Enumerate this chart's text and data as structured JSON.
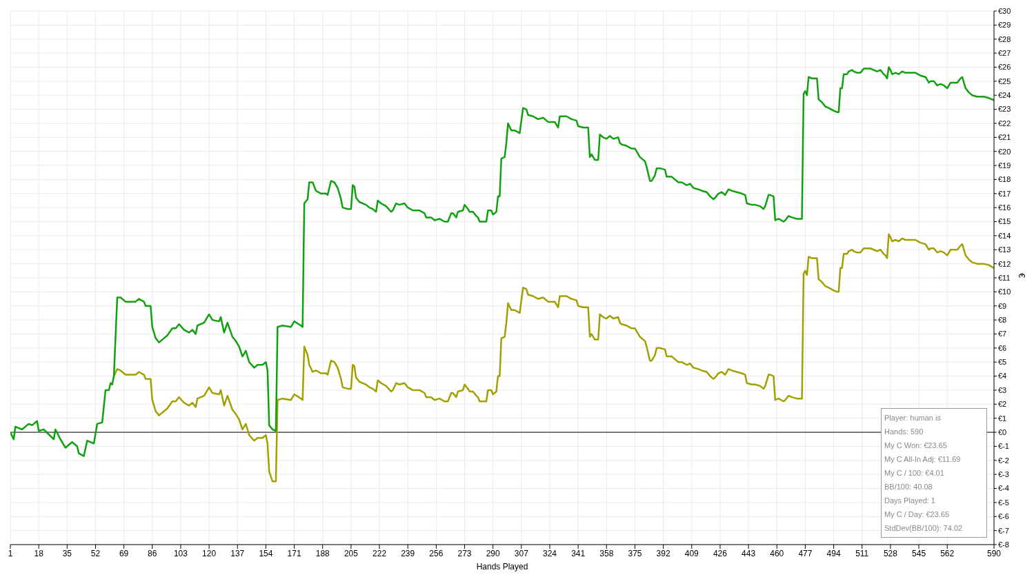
{
  "chart_data": {
    "type": "line",
    "xlabel": "Hands Played",
    "ylabel": "€",
    "x": [
      1,
      3,
      4,
      8,
      12,
      14,
      17,
      18,
      21,
      27,
      28,
      31,
      34,
      38,
      41,
      42,
      45,
      47,
      51,
      53,
      56,
      58,
      60,
      61,
      62,
      63,
      65,
      67,
      70,
      76,
      78,
      81,
      82,
      85,
      86,
      88,
      90,
      93,
      95,
      98,
      100,
      102,
      105,
      108,
      110,
      112,
      113,
      117,
      120,
      122,
      126,
      127,
      129,
      131,
      134,
      136,
      138,
      140,
      142,
      144,
      147,
      149,
      152,
      154,
      155,
      156,
      158,
      160,
      161,
      164,
      169,
      171,
      175,
      176,
      177,
      179,
      180,
      182,
      184,
      187,
      190,
      191,
      193,
      195,
      197,
      199,
      200,
      203,
      205,
      206,
      207,
      208,
      210,
      214,
      216,
      218,
      220,
      221,
      223,
      226,
      229,
      230,
      232,
      234,
      237,
      239,
      242,
      246,
      249,
      250,
      253,
      255,
      258,
      261,
      263,
      265,
      266,
      268,
      269,
      272,
      273,
      275,
      276,
      278,
      280,
      281,
      282,
      286,
      287,
      289,
      290,
      292,
      293,
      294,
      295,
      297,
      298,
      299,
      301,
      303,
      306,
      308,
      310,
      311,
      314,
      317,
      320,
      323,
      327,
      329,
      330,
      334,
      337,
      340,
      341,
      344,
      347,
      348,
      349,
      351,
      353,
      354,
      356,
      358,
      360,
      362,
      365,
      366,
      367,
      370,
      373,
      375,
      376,
      378,
      380,
      381,
      382,
      384,
      385,
      387,
      388,
      390,
      393,
      394,
      397,
      399,
      401,
      403,
      406,
      408,
      410,
      413,
      415,
      418,
      420,
      422,
      423,
      425,
      427,
      429,
      431,
      433,
      436,
      439,
      441,
      442,
      445,
      447,
      450,
      452,
      453,
      455,
      456,
      458,
      459,
      461,
      464,
      465,
      467,
      469,
      472,
      475,
      476,
      477,
      478,
      479,
      481,
      484,
      485,
      487,
      489,
      491,
      494,
      496,
      497,
      498,
      499,
      500,
      502,
      503,
      505,
      506,
      508,
      510,
      512,
      514,
      516,
      518,
      520,
      522,
      524,
      525,
      526,
      527,
      528,
      529,
      531,
      533,
      535,
      537,
      540,
      543,
      546,
      549,
      551,
      552,
      554,
      556,
      558,
      560,
      562,
      564,
      566,
      568,
      570,
      571,
      573,
      575,
      577,
      580,
      584,
      587,
      590
    ],
    "series": [
      {
        "color": "#a0a000",
        "values": [
          null,
          null,
          null,
          null,
          null,
          null,
          null,
          null,
          null,
          null,
          null,
          null,
          null,
          null,
          null,
          null,
          null,
          null,
          null,
          null,
          null,
          null,
          null,
          null,
          null,
          4.0,
          4.5,
          4.4,
          4.1,
          4.1,
          4.3,
          4.1,
          3.8,
          3.8,
          2.3,
          1.5,
          1.2,
          1.5,
          1.7,
          2.2,
          2.2,
          2.5,
          2.1,
          1.9,
          2.1,
          1.8,
          2.4,
          2.6,
          3.2,
          2.8,
          2.7,
          3.0,
          1.9,
          2.6,
          1.6,
          1.3,
          0.9,
          0.2,
          0.6,
          -0.2,
          -0.6,
          -0.4,
          -0.4,
          -0.2,
          -0.8,
          -2.8,
          -3.5,
          -3.5,
          2.3,
          2.4,
          2.3,
          2.7,
          2.4,
          2.3,
          6.1,
          5.5,
          4.8,
          4.3,
          4.4,
          4.2,
          4.2,
          4.1,
          5.1,
          5.0,
          4.6,
          3.8,
          3.2,
          3.1,
          3.1,
          4.8,
          4.7,
          3.9,
          3.6,
          3.4,
          3.2,
          3.1,
          2.9,
          3.7,
          3.5,
          3.3,
          2.9,
          3.0,
          3.5,
          3.4,
          3.5,
          3.2,
          3.0,
          3.0,
          2.8,
          2.5,
          2.5,
          2.3,
          2.4,
          2.2,
          2.2,
          2.8,
          2.8,
          2.5,
          2.9,
          3.0,
          3.4,
          3.1,
          2.9,
          2.9,
          2.6,
          2.5,
          2.2,
          2.2,
          3.0,
          3.0,
          2.7,
          2.9,
          4.0,
          4.0,
          6.7,
          6.8,
          7.8,
          9.2,
          8.7,
          8.7,
          8.5,
          10.3,
          10.2,
          9.8,
          9.7,
          9.5,
          9.6,
          9.3,
          9.3,
          8.9,
          9.7,
          9.7,
          9.5,
          9.4,
          9.0,
          8.9,
          8.9,
          6.8,
          7.0,
          6.6,
          6.6,
          8.4,
          8.2,
          8.1,
          8.3,
          8.1,
          8.2,
          7.8,
          7.7,
          7.6,
          7.4,
          7.4,
          7.2,
          6.8,
          6.6,
          6.5,
          6.1,
          5.1,
          5.1,
          5.5,
          6.0,
          6.0,
          5.9,
          5.4,
          5.4,
          5.2,
          5.0,
          5.0,
          4.8,
          4.9,
          4.6,
          4.5,
          4.4,
          4.3,
          4.0,
          3.8,
          3.9,
          4.2,
          4.3,
          4.1,
          4.5,
          4.4,
          4.3,
          4.2,
          4.1,
          3.5,
          3.4,
          3.4,
          3.3,
          3.1,
          3.3,
          4.1,
          4.1,
          4.0,
          2.3,
          2.4,
          2.2,
          2.3,
          2.6,
          2.5,
          2.4,
          2.4,
          11.3,
          11.5,
          11.2,
          12.5,
          12.4,
          12.4,
          10.9,
          10.7,
          10.4,
          10.3,
          10.1,
          10.0,
          10.0,
          11.7,
          11.7,
          12.7,
          12.7,
          12.9,
          13.0,
          12.9,
          12.8,
          12.8,
          13.1,
          13.1,
          13.1,
          13.0,
          12.9,
          13.0,
          12.7,
          12.6,
          12.4,
          14.1,
          13.9,
          13.6,
          13.7,
          13.6,
          13.8,
          13.7,
          13.7,
          13.7,
          13.5,
          13.4,
          13.0,
          13.1,
          13.1,
          12.8,
          12.9,
          12.8,
          12.6,
          13.0,
          13.0,
          13.0,
          13.3,
          13.4,
          12.6,
          12.3,
          12.1,
          12.0,
          12.0,
          11.9,
          11.69
        ]
      },
      {
        "color": "#10a010",
        "values": [
          0,
          -0.5,
          0.4,
          0.2,
          0.6,
          0.5,
          0.8,
          0.1,
          0.2,
          -0.5,
          0.2,
          -0.5,
          -1.1,
          -0.7,
          -1.0,
          -1.5,
          -1.7,
          -0.6,
          -0.8,
          0.6,
          0.7,
          3.0,
          3.0,
          3.5,
          3.4,
          4.0,
          9.6,
          9.6,
          9.3,
          9.3,
          9.5,
          9.3,
          9.0,
          9.0,
          7.5,
          6.7,
          6.4,
          6.7,
          6.9,
          7.4,
          7.4,
          7.7,
          7.3,
          7.1,
          7.3,
          7.0,
          7.6,
          7.8,
          8.4,
          8.0,
          7.9,
          8.2,
          7.1,
          7.8,
          6.8,
          6.5,
          6.1,
          5.4,
          5.8,
          5.0,
          4.6,
          4.8,
          4.8,
          5.0,
          4.4,
          0.5,
          0.2,
          0.1,
          7.5,
          7.6,
          7.5,
          7.9,
          7.6,
          7.5,
          16.3,
          16.6,
          17.8,
          17.8,
          17.2,
          17.0,
          17.0,
          16.9,
          17.9,
          17.8,
          17.4,
          16.6,
          16.0,
          15.9,
          15.9,
          17.6,
          17.5,
          16.7,
          16.4,
          16.2,
          16.0,
          15.9,
          15.7,
          16.5,
          16.3,
          16.1,
          15.7,
          15.8,
          16.3,
          16.2,
          16.3,
          16.0,
          15.8,
          15.8,
          15.6,
          15.3,
          15.3,
          15.1,
          15.2,
          15.0,
          15.0,
          15.6,
          15.6,
          15.3,
          15.7,
          15.8,
          16.2,
          15.9,
          15.7,
          15.7,
          15.4,
          15.3,
          15.0,
          15.0,
          15.8,
          15.8,
          15.5,
          15.7,
          16.8,
          16.8,
          19.5,
          19.6,
          20.6,
          22.0,
          21.5,
          21.5,
          21.3,
          23.1,
          23.0,
          22.6,
          22.5,
          22.3,
          22.4,
          22.1,
          22.1,
          21.7,
          22.5,
          22.5,
          22.3,
          22.2,
          21.8,
          21.7,
          21.7,
          19.6,
          19.8,
          19.4,
          19.4,
          21.2,
          21.0,
          20.9,
          21.1,
          20.9,
          21.0,
          20.6,
          20.5,
          20.4,
          20.2,
          20.2,
          20.0,
          19.6,
          19.4,
          19.3,
          18.9,
          17.9,
          17.9,
          18.3,
          18.8,
          18.8,
          18.7,
          18.2,
          18.2,
          18.0,
          17.8,
          17.8,
          17.6,
          17.7,
          17.4,
          17.3,
          17.2,
          17.1,
          16.8,
          16.6,
          16.7,
          17.0,
          17.1,
          16.9,
          17.3,
          17.2,
          17.1,
          17.0,
          16.9,
          16.3,
          16.2,
          16.2,
          16.1,
          15.9,
          16.1,
          16.9,
          16.9,
          16.8,
          15.1,
          15.2,
          15.0,
          15.1,
          15.4,
          15.3,
          15.2,
          15.2,
          24.1,
          24.3,
          24.0,
          25.3,
          25.2,
          25.2,
          23.7,
          23.5,
          23.2,
          23.1,
          22.9,
          22.8,
          22.8,
          24.5,
          24.5,
          25.5,
          25.5,
          25.7,
          25.8,
          25.7,
          25.6,
          25.6,
          25.9,
          25.9,
          25.9,
          25.8,
          25.7,
          25.8,
          25.5,
          25.4,
          25.2,
          26.0,
          25.8,
          25.5,
          25.6,
          25.5,
          25.7,
          25.6,
          25.6,
          25.6,
          25.4,
          25.3,
          24.9,
          25.0,
          25.0,
          24.7,
          24.8,
          24.7,
          24.5,
          24.9,
          24.9,
          24.9,
          25.2,
          25.3,
          24.5,
          24.2,
          24.0,
          23.9,
          23.9,
          23.8,
          23.65
        ]
      }
    ],
    "xlim": [
      1,
      590
    ],
    "xticks": [
      1,
      18,
      35,
      52,
      69,
      86,
      103,
      120,
      137,
      154,
      171,
      188,
      205,
      222,
      239,
      256,
      273,
      290,
      307,
      324,
      341,
      358,
      375,
      392,
      409,
      426,
      443,
      460,
      477,
      494,
      511,
      528,
      545,
      562,
      590
    ],
    "ylim": [
      -8,
      30
    ],
    "yticks": [
      {
        "value": -8,
        "label": "€-8"
      },
      {
        "value": -7,
        "label": "€-7"
      },
      {
        "value": -6,
        "label": "€-6"
      },
      {
        "value": -5,
        "label": "€-5"
      },
      {
        "value": -4,
        "label": "€-4"
      },
      {
        "value": -3,
        "label": "€-3"
      },
      {
        "value": -2,
        "label": "€-2"
      },
      {
        "value": -1,
        "label": "€-1"
      },
      {
        "value": 0,
        "label": "€0"
      },
      {
        "value": 1,
        "label": "€1"
      },
      {
        "value": 2,
        "label": "€2"
      },
      {
        "value": 3,
        "label": "€3"
      },
      {
        "value": 4,
        "label": "€4"
      },
      {
        "value": 5,
        "label": "€5"
      },
      {
        "value": 6,
        "label": "€6"
      },
      {
        "value": 7,
        "label": "€7"
      },
      {
        "value": 8,
        "label": "€8"
      },
      {
        "value": 9,
        "label": "€9"
      },
      {
        "value": 10,
        "label": "€10"
      },
      {
        "value": 11,
        "label": "€11"
      },
      {
        "value": 12,
        "label": "€12"
      },
      {
        "value": 13,
        "label": "€13"
      },
      {
        "value": 14,
        "label": "€14"
      },
      {
        "value": 15,
        "label": "€15"
      },
      {
        "value": 16,
        "label": "€16"
      },
      {
        "value": 17,
        "label": "€17"
      },
      {
        "value": 18,
        "label": "€18"
      },
      {
        "value": 19,
        "label": "€19"
      },
      {
        "value": 20,
        "label": "€20"
      },
      {
        "value": 21,
        "label": "€21"
      },
      {
        "value": 22,
        "label": "€22"
      },
      {
        "value": 23,
        "label": "€23"
      },
      {
        "value": 24,
        "label": "€24"
      },
      {
        "value": 25,
        "label": "€25"
      },
      {
        "value": 26,
        "label": "€26"
      },
      {
        "value": 27,
        "label": "€27"
      },
      {
        "value": 28,
        "label": "€28"
      },
      {
        "value": 29,
        "label": "€29"
      },
      {
        "value": 30,
        "label": "€30"
      }
    ],
    "grid": true,
    "ref_lines": [
      {
        "axis": "y",
        "value": 0,
        "color": "#000000"
      }
    ],
    "annotations": [
      "Player: human is",
      "Hands: 590",
      "My C Won: €23.65",
      "My C All-In Adj: €11.69",
      "My C / 100: €4.01",
      "BB/100: 40.08",
      "Days Played: 1",
      "My C / Day: €23.65",
      "StdDev(BB/100): 74.02"
    ]
  }
}
